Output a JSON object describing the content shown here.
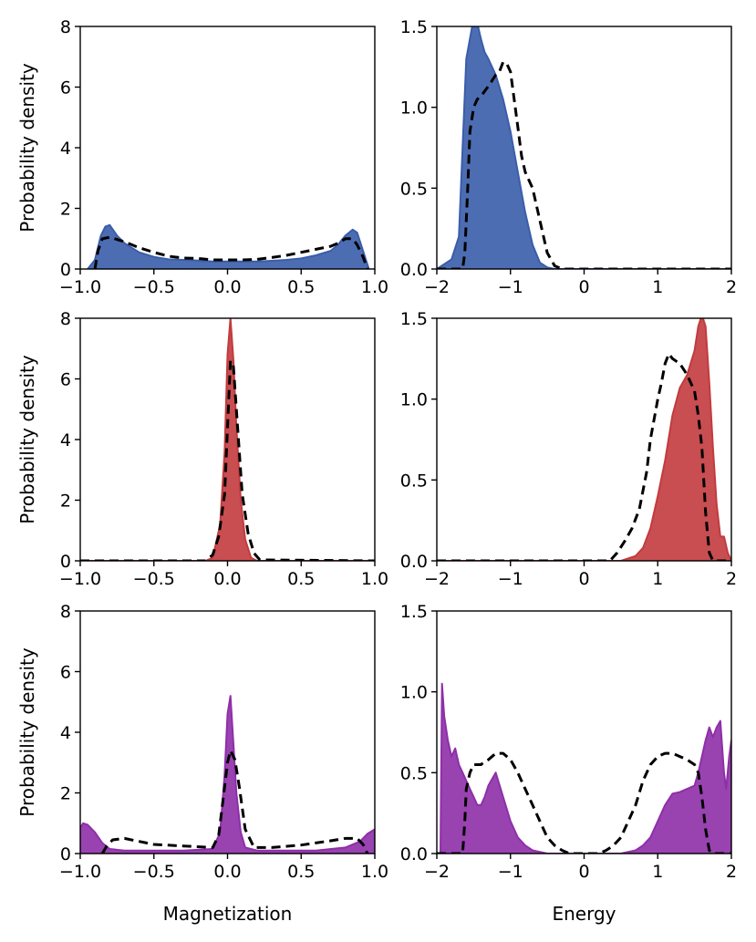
{
  "chart_data": [
    {
      "type": "area",
      "panel": "row1-magnetization",
      "xlabel": "",
      "ylabel": "Probability density",
      "xlim": [
        -1.0,
        1.0
      ],
      "ylim": [
        0,
        8
      ],
      "xticks": [
        "−1.0",
        "−0.5",
        "0.0",
        "0.5",
        "1.0"
      ],
      "yticks": [
        "0",
        "2",
        "4",
        "6",
        "8"
      ],
      "fill_color": "#3a5daa",
      "series": [
        {
          "name": "filled",
          "x": [
            -0.95,
            -0.9,
            -0.86,
            -0.83,
            -0.8,
            -0.75,
            -0.7,
            -0.6,
            -0.5,
            -0.4,
            -0.3,
            -0.2,
            -0.1,
            0.0,
            0.1,
            0.2,
            0.3,
            0.4,
            0.5,
            0.6,
            0.7,
            0.75,
            0.8,
            0.85,
            0.88,
            0.92,
            0.96
          ],
          "y": [
            0,
            0.3,
            1.1,
            1.4,
            1.45,
            1.1,
            0.85,
            0.55,
            0.4,
            0.32,
            0.3,
            0.28,
            0.25,
            0.25,
            0.25,
            0.25,
            0.27,
            0.3,
            0.35,
            0.45,
            0.6,
            0.8,
            1.1,
            1.3,
            1.2,
            0.6,
            0
          ]
        },
        {
          "name": "dashed",
          "x": [
            -0.9,
            -0.88,
            -0.85,
            -0.8,
            -0.7,
            -0.6,
            -0.5,
            -0.4,
            -0.3,
            -0.2,
            -0.1,
            0.0,
            0.1,
            0.2,
            0.3,
            0.4,
            0.5,
            0.6,
            0.7,
            0.75,
            0.8,
            0.85,
            0.88,
            0.92,
            0.95
          ],
          "y": [
            0,
            0.6,
            1.0,
            1.05,
            0.9,
            0.7,
            0.55,
            0.42,
            0.36,
            0.35,
            0.3,
            0.3,
            0.3,
            0.32,
            0.38,
            0.45,
            0.55,
            0.65,
            0.75,
            0.85,
            1.0,
            1.0,
            0.8,
            0.4,
            0
          ]
        }
      ]
    },
    {
      "type": "area",
      "panel": "row1-energy",
      "xlabel": "",
      "ylabel": "",
      "xlim": [
        -2,
        2
      ],
      "ylim": [
        0,
        1.5
      ],
      "xticks": [
        "−2",
        "−1",
        "0",
        "1",
        "2"
      ],
      "yticks": [
        "0.0",
        "0.5",
        "1.0",
        "1.5"
      ],
      "fill_color": "#3a5daa",
      "series": [
        {
          "name": "filled",
          "x": [
            -2,
            -1.9,
            -1.8,
            -1.7,
            -1.6,
            -1.5,
            -1.45,
            -1.4,
            -1.35,
            -1.3,
            -1.2,
            -1.1,
            -1.0,
            -0.9,
            -0.8,
            -0.7,
            -0.6,
            -0.5,
            -0.4,
            2
          ],
          "y": [
            0,
            0.03,
            0.06,
            0.2,
            1.3,
            1.55,
            1.52,
            1.42,
            1.34,
            1.3,
            1.2,
            1.05,
            0.85,
            0.6,
            0.35,
            0.15,
            0.04,
            0.01,
            0,
            0
          ]
        },
        {
          "name": "dashed",
          "x": [
            -2,
            -1.65,
            -1.62,
            -1.58,
            -1.55,
            -1.5,
            -1.45,
            -1.4,
            -1.3,
            -1.2,
            -1.15,
            -1.1,
            -1.05,
            -1.0,
            -0.95,
            -0.9,
            -0.85,
            -0.8,
            -0.7,
            -0.6,
            -0.5,
            -0.4,
            -0.3,
            2
          ],
          "y": [
            0,
            0,
            0.1,
            0.5,
            0.85,
            1.0,
            1.05,
            1.07,
            1.13,
            1.2,
            1.22,
            1.28,
            1.27,
            1.22,
            1.05,
            0.88,
            0.7,
            0.6,
            0.5,
            0.3,
            0.1,
            0.02,
            0,
            0
          ]
        }
      ]
    },
    {
      "type": "area",
      "panel": "row2-magnetization",
      "xlabel": "",
      "ylabel": "Probability density",
      "xlim": [
        -1.0,
        1.0
      ],
      "ylim": [
        0,
        8
      ],
      "xticks": [
        "−1.0",
        "−0.5",
        "0.0",
        "0.5",
        "1.0"
      ],
      "yticks": [
        "0",
        "2",
        "4",
        "6",
        "8"
      ],
      "fill_color": "#c23b3e",
      "series": [
        {
          "name": "filled",
          "x": [
            -1.0,
            -0.15,
            -0.1,
            -0.05,
            -0.02,
            0.0,
            0.02,
            0.04,
            0.06,
            0.09,
            0.12,
            0.16,
            0.2,
            1.0
          ],
          "y": [
            0,
            0,
            0.1,
            1.2,
            3.6,
            6.8,
            8.0,
            6.6,
            4.4,
            2.0,
            0.7,
            0.1,
            0,
            0
          ]
        },
        {
          "name": "dashed",
          "x": [
            -1.0,
            -0.15,
            -0.1,
            -0.06,
            -0.02,
            0.0,
            0.02,
            0.04,
            0.06,
            0.08,
            0.1,
            0.14,
            0.18,
            0.22,
            1.0
          ],
          "y": [
            0,
            0,
            0.2,
            0.8,
            2.2,
            4.4,
            6.6,
            6.4,
            5.0,
            3.6,
            2.2,
            0.9,
            0.25,
            0.03,
            0
          ]
        }
      ]
    },
    {
      "type": "area",
      "panel": "row2-energy",
      "xlabel": "",
      "ylabel": "",
      "xlim": [
        -2,
        2
      ],
      "ylim": [
        0,
        1.5
      ],
      "xticks": [
        "−2",
        "−1",
        "0",
        "1",
        "2"
      ],
      "yticks": [
        "0.0",
        "0.5",
        "1.0",
        "1.5"
      ],
      "fill_color": "#c23b3e",
      "series": [
        {
          "name": "filled",
          "x": [
            -2,
            0.5,
            0.7,
            0.8,
            0.9,
            1.0,
            1.1,
            1.2,
            1.3,
            1.4,
            1.5,
            1.55,
            1.6,
            1.65,
            1.7,
            1.75,
            1.8,
            1.85,
            1.9,
            1.95,
            2.0
          ],
          "y": [
            0,
            0,
            0.03,
            0.08,
            0.2,
            0.4,
            0.62,
            0.9,
            1.07,
            1.15,
            1.3,
            1.45,
            1.52,
            1.45,
            1.1,
            0.7,
            0.35,
            0.15,
            0.15,
            0.05,
            0
          ]
        },
        {
          "name": "dashed",
          "x": [
            -2,
            0.35,
            0.45,
            0.55,
            0.65,
            0.75,
            0.85,
            0.9,
            1.0,
            1.05,
            1.1,
            1.15,
            1.2,
            1.3,
            1.4,
            1.5,
            1.55,
            1.6,
            1.65,
            1.7,
            1.75,
            2
          ],
          "y": [
            0,
            0,
            0.05,
            0.12,
            0.2,
            0.32,
            0.55,
            0.75,
            1.0,
            1.1,
            1.22,
            1.28,
            1.25,
            1.22,
            1.15,
            1.05,
            0.9,
            0.7,
            0.3,
            0.05,
            0,
            0
          ]
        }
      ]
    },
    {
      "type": "area",
      "panel": "row3-magnetization",
      "xlabel": "Magnetization",
      "ylabel": "Probability density",
      "xlim": [
        -1.0,
        1.0
      ],
      "ylim": [
        0,
        8
      ],
      "xticks": [
        "−1.0",
        "−0.5",
        "0.0",
        "0.5",
        "1.0"
      ],
      "yticks": [
        "0",
        "2",
        "4",
        "6",
        "8"
      ],
      "fill_color": "#8e2fa8",
      "series": [
        {
          "name": "filled",
          "x": [
            -1.0,
            -0.98,
            -0.95,
            -0.9,
            -0.85,
            -0.8,
            -0.7,
            -0.6,
            -0.5,
            -0.3,
            -0.1,
            -0.05,
            -0.02,
            0.0,
            0.02,
            0.04,
            0.06,
            0.09,
            0.12,
            0.2,
            0.4,
            0.6,
            0.8,
            0.9,
            0.95,
            1.0
          ],
          "y": [
            0.85,
            1.0,
            0.95,
            0.7,
            0.35,
            0.15,
            0.1,
            0.1,
            0.1,
            0.1,
            0.15,
            0.7,
            2.6,
            4.6,
            5.2,
            3.6,
            2.0,
            0.7,
            0.2,
            0.1,
            0.1,
            0.1,
            0.2,
            0.4,
            0.65,
            0.8
          ]
        },
        {
          "name": "dashed",
          "x": [
            -0.85,
            -0.82,
            -0.78,
            -0.7,
            -0.6,
            -0.5,
            -0.3,
            -0.1,
            -0.06,
            -0.02,
            0.0,
            0.02,
            0.05,
            0.08,
            0.12,
            0.18,
            0.3,
            0.5,
            0.7,
            0.8,
            0.88,
            0.92,
            0.95
          ],
          "y": [
            0,
            0.25,
            0.45,
            0.5,
            0.4,
            0.3,
            0.25,
            0.2,
            0.6,
            2.2,
            3.0,
            3.4,
            3.1,
            2.2,
            0.8,
            0.2,
            0.2,
            0.28,
            0.42,
            0.5,
            0.5,
            0.3,
            0
          ]
        }
      ]
    },
    {
      "type": "area",
      "panel": "row3-energy",
      "xlabel": "Energy",
      "ylabel": "",
      "xlim": [
        -2,
        2
      ],
      "ylim": [
        0,
        1.5
      ],
      "xticks": [
        "−2",
        "−1",
        "0",
        "1",
        "2"
      ],
      "yticks": [
        "0.0",
        "0.5",
        "1.0",
        "1.5"
      ],
      "fill_color": "#8e2fa8",
      "series": [
        {
          "name": "filled",
          "x": [
            -1.95,
            -1.93,
            -1.9,
            -1.85,
            -1.8,
            -1.75,
            -1.7,
            -1.65,
            -1.6,
            -1.55,
            -1.5,
            -1.45,
            -1.4,
            -1.35,
            -1.3,
            -1.2,
            -1.1,
            -1.0,
            -0.9,
            -0.8,
            -0.7,
            -0.6,
            -0.5,
            0.5,
            0.6,
            0.7,
            0.8,
            0.9,
            1.0,
            1.1,
            1.2,
            1.3,
            1.4,
            1.5,
            1.55,
            1.6,
            1.65,
            1.7,
            1.75,
            1.8,
            1.85,
            1.9,
            1.93,
            1.97,
            2.0
          ],
          "y": [
            0,
            1.05,
            0.85,
            0.7,
            0.6,
            0.65,
            0.55,
            0.5,
            0.45,
            0.4,
            0.35,
            0.3,
            0.3,
            0.35,
            0.42,
            0.5,
            0.35,
            0.2,
            0.1,
            0.05,
            0.02,
            0.01,
            0,
            0,
            0.01,
            0.02,
            0.05,
            0.1,
            0.2,
            0.3,
            0.37,
            0.38,
            0.4,
            0.42,
            0.5,
            0.6,
            0.7,
            0.78,
            0.72,
            0.78,
            0.82,
            0.5,
            0.4,
            0.6,
            0.7
          ]
        },
        {
          "name": "dashed",
          "x": [
            -2,
            -1.65,
            -1.62,
            -1.6,
            -1.55,
            -1.5,
            -1.45,
            -1.4,
            -1.35,
            -1.3,
            -1.2,
            -1.15,
            -1.1,
            -1.0,
            -0.9,
            -0.8,
            -0.7,
            -0.6,
            -0.5,
            -0.4,
            -0.3,
            -0.2,
            0.2,
            0.3,
            0.4,
            0.5,
            0.6,
            0.7,
            0.8,
            0.9,
            1.0,
            1.1,
            1.2,
            1.3,
            1.4,
            1.5,
            1.55,
            1.6,
            1.65,
            1.7,
            1.75,
            2
          ],
          "y": [
            0,
            0,
            0.2,
            0.4,
            0.5,
            0.55,
            0.55,
            0.55,
            0.57,
            0.58,
            0.62,
            0.62,
            0.62,
            0.58,
            0.5,
            0.4,
            0.3,
            0.2,
            0.1,
            0.05,
            0.02,
            0,
            0,
            0.02,
            0.05,
            0.1,
            0.2,
            0.3,
            0.45,
            0.55,
            0.6,
            0.62,
            0.62,
            0.6,
            0.58,
            0.55,
            0.5,
            0.35,
            0.15,
            0.02,
            0,
            0
          ]
        }
      ]
    }
  ]
}
